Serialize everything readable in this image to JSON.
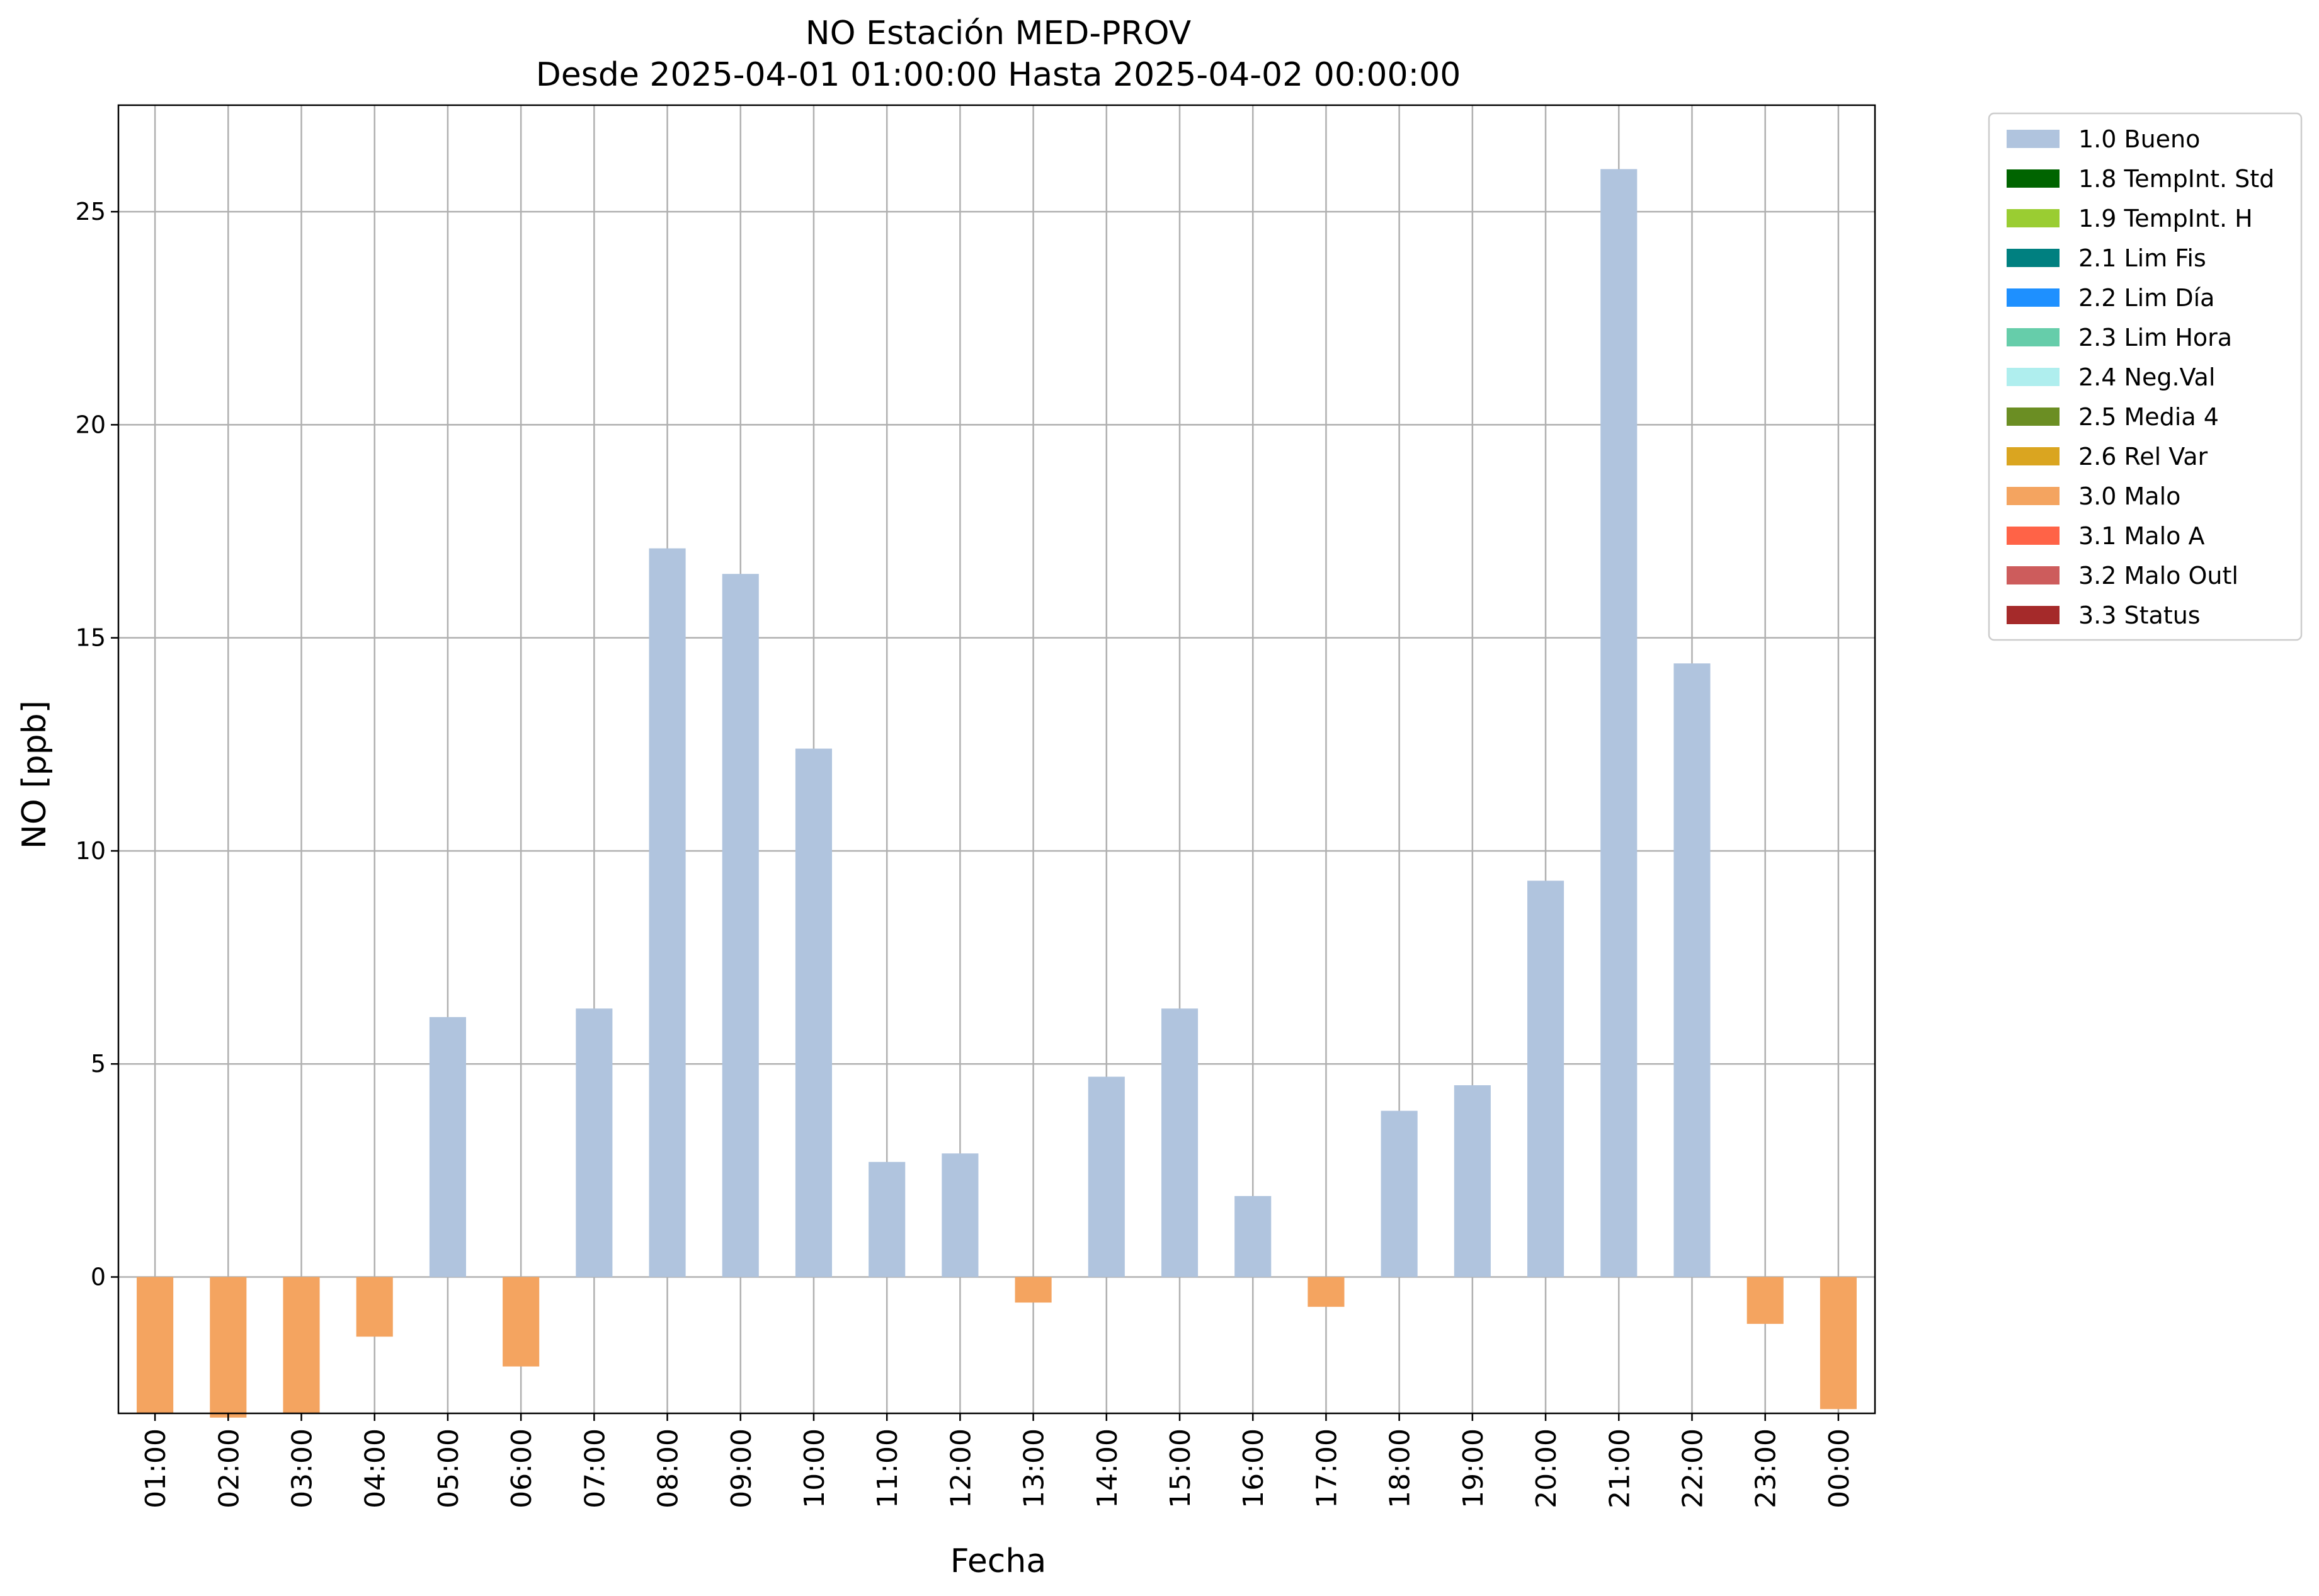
{
  "chart_data": {
    "type": "bar",
    "title": "NO Estación MED-PROV",
    "subtitle": "Desde 2025-04-01 01:00:00 Hasta 2025-04-02 00:00:00",
    "xlabel": "Fecha",
    "ylabel": "NO [ppb]",
    "ylim": [
      -3.2,
      27.5
    ],
    "yticks": [
      0,
      5,
      10,
      15,
      20,
      25
    ],
    "grid": true,
    "legend_position": "outside-top-right",
    "categories": [
      "01:00",
      "02:00",
      "03:00",
      "04:00",
      "05:00",
      "06:00",
      "07:00",
      "08:00",
      "09:00",
      "10:00",
      "11:00",
      "12:00",
      "13:00",
      "14:00",
      "15:00",
      "16:00",
      "17:00",
      "18:00",
      "19:00",
      "20:00",
      "21:00",
      "22:00",
      "23:00",
      "00:00"
    ],
    "values": [
      -3.2,
      -3.3,
      -3.2,
      -1.4,
      6.1,
      -2.1,
      6.3,
      17.1,
      16.5,
      12.4,
      2.7,
      2.9,
      -0.6,
      4.7,
      6.3,
      1.9,
      -0.7,
      3.9,
      4.5,
      9.3,
      26.0,
      14.4,
      -1.1,
      -3.1
    ],
    "flags": [
      "3.0 Malo",
      "3.0 Malo",
      "3.0 Malo",
      "3.0 Malo",
      "1.0 Bueno",
      "3.0 Malo",
      "1.0 Bueno",
      "1.0 Bueno",
      "1.0 Bueno",
      "1.0 Bueno",
      "1.0 Bueno",
      "1.0 Bueno",
      "3.0 Malo",
      "1.0 Bueno",
      "1.0 Bueno",
      "1.0 Bueno",
      "3.0 Malo",
      "1.0 Bueno",
      "1.0 Bueno",
      "1.0 Bueno",
      "1.0 Bueno",
      "1.0 Bueno",
      "3.0 Malo",
      "3.0 Malo"
    ],
    "legend": [
      {
        "label": "1.0 Bueno",
        "color": "#b0c4de"
      },
      {
        "label": "1.8 TempInt. Std",
        "color": "#006400"
      },
      {
        "label": "1.9 TempInt. H",
        "color": "#9acd32"
      },
      {
        "label": "2.1 Lim Fis",
        "color": "#008080"
      },
      {
        "label": "2.2 Lim Día",
        "color": "#1e90ff"
      },
      {
        "label": "2.3 Lim Hora",
        "color": "#66cdaa"
      },
      {
        "label": "2.4 Neg.Val",
        "color": "#afeeee"
      },
      {
        "label": "2.5 Media 4",
        "color": "#6b8e23"
      },
      {
        "label": "2.6 Rel Var",
        "color": "#daa520"
      },
      {
        "label": "3.0 Malo",
        "color": "#f4a460"
      },
      {
        "label": "3.1 Malo A",
        "color": "#ff6347"
      },
      {
        "label": "3.2 Malo Outl",
        "color": "#cd5c5c"
      },
      {
        "label": "3.3 Status",
        "color": "#a52a2a"
      }
    ]
  }
}
